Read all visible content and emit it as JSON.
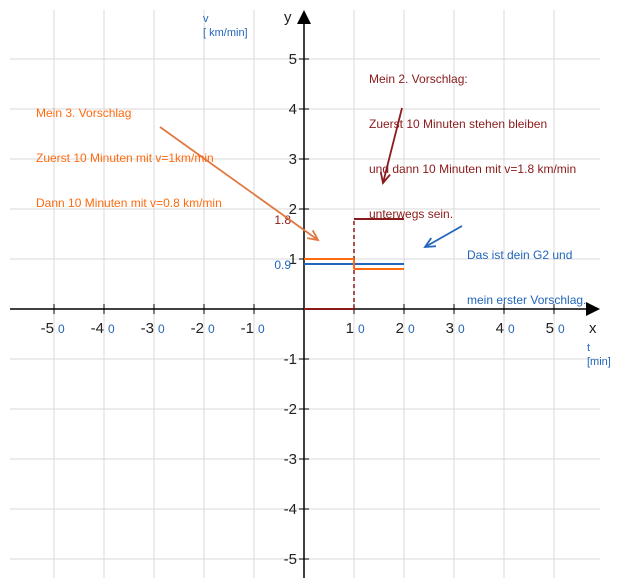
{
  "colors": {
    "grid": "#d8d8d8",
    "axis": "#000000",
    "blue": "#2266bb",
    "red": "#8b1a1a",
    "orange": "#ff6a10",
    "arrow_orange": "#e07840"
  },
  "chart_data": {
    "type": "line",
    "xlim": [
      -60,
      60
    ],
    "ylim": [
      -5.5,
      5.5
    ],
    "grid": true,
    "x_axis_name": "x",
    "y_axis_name": "y",
    "x_unit_lines": [
      "t",
      "[min]"
    ],
    "y_unit_lines": [
      "v",
      "[ km/min]"
    ],
    "x_tick_values": [
      -50,
      -40,
      -30,
      -20,
      -10,
      10,
      20,
      30,
      40,
      50
    ],
    "x_tick_labels": [
      {
        "main": "-5",
        "zero": "0"
      },
      {
        "main": "-4",
        "zero": "0"
      },
      {
        "main": "-3",
        "zero": "0"
      },
      {
        "main": "-2",
        "zero": "0"
      },
      {
        "main": "-1",
        "zero": "0"
      },
      {
        "main": "1",
        "zero": "0"
      },
      {
        "main": "2",
        "zero": "0"
      },
      {
        "main": "3",
        "zero": "0"
      },
      {
        "main": "4",
        "zero": "0"
      },
      {
        "main": "5",
        "zero": "0"
      }
    ],
    "y_tick_values": [
      5,
      4,
      3,
      2,
      1,
      -1,
      -2,
      -3,
      -4,
      -5
    ],
    "y_tick_labels": [
      "5",
      "4",
      "3",
      "2",
      "1",
      "-1",
      "-2",
      "-3",
      "-4",
      "-5"
    ],
    "special_labels": [
      {
        "text": "1.8",
        "y": 1.8,
        "color": "#8b1a1a"
      },
      {
        "text": "0.9",
        "y": 0.9,
        "color": "#2266bb"
      }
    ],
    "series": [
      {
        "color": "#2266bb",
        "points": [
          [
            0,
            0.9
          ],
          [
            20,
            0.9
          ]
        ]
      },
      {
        "color": "#8b1a1a",
        "points": [
          [
            0,
            0
          ],
          [
            10,
            0
          ],
          [
            10,
            1.8
          ],
          [
            20,
            1.8
          ]
        ],
        "dashed_vertical_at": 10
      },
      {
        "color": "#ff6a10",
        "points": [
          [
            0,
            1.0
          ],
          [
            10,
            1.0
          ],
          [
            10,
            0.8
          ],
          [
            20,
            0.8
          ]
        ]
      }
    ],
    "annotations": [
      {
        "key": "orange",
        "color": "#ff6a10",
        "lines": [
          "Mein 3. Vorschlag",
          "Zuerst 10 Minuten mit v=1km/min",
          "Dann 10 Minuten mit v=0.8 km/min"
        ]
      },
      {
        "key": "red",
        "color": "#8b1a1a",
        "lines": [
          "Mein 2. Vorschlag:",
          "Zuerst 10 Minuten stehen bleiben",
          "und dann 10 Minuten mit v=1.8 km/min",
          "unterwegs sein."
        ]
      },
      {
        "key": "blue",
        "color": "#2266bb",
        "lines": [
          "Das ist dein G2 und",
          "mein erster Vorschlag."
        ]
      }
    ]
  }
}
